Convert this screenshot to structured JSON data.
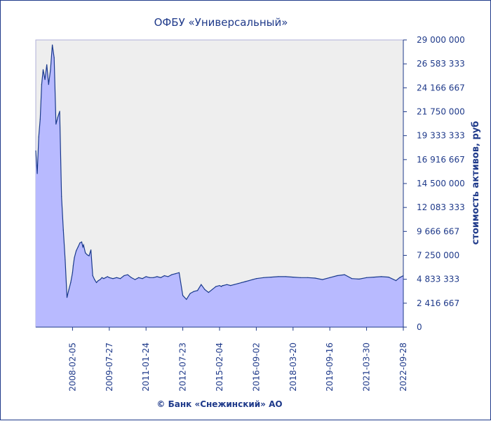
{
  "chart_data": {
    "type": "area",
    "title": "ОФБУ «Универсальный»",
    "ylabel": "стоимость активов, руб",
    "footer": "© Банк «Снежинский» АО",
    "ylim": [
      0,
      29000000
    ],
    "y_ticks": [
      0,
      2416667,
      4833333,
      7250000,
      9666667,
      12083333,
      14500000,
      16916667,
      19333333,
      21750000,
      24166667,
      26583333,
      29000000
    ],
    "y_tick_labels": [
      "0",
      "2 416 667",
      "4 833 333",
      "7 250 000",
      "9 666 667",
      "12 083 333",
      "14 500 000",
      "16 916 667",
      "19 333 333",
      "21 750 000",
      "24 166 667",
      "26 583 333",
      "29 000 000"
    ],
    "x_tick_labels": [
      "2008-02-05",
      "2009-07-27",
      "2011-01-24",
      "2012-07-23",
      "2015-02-04",
      "2016-09-02",
      "2018-03-20",
      "2019-09-16",
      "2021-03-30",
      "2022-09-28"
    ],
    "x_range_index": [
      0,
      1000
    ],
    "x_tick_index": [
      100,
      200,
      300,
      400,
      500,
      600,
      700,
      800,
      900,
      1000
    ],
    "colors": {
      "frame": "#1f3a8a",
      "plot_bg": "#eeeeee",
      "area_fill": "#b8baff",
      "line": "#1a3a8c",
      "text": "#1f3a8a"
    },
    "series": [
      {
        "x": [
          0,
          4,
          8,
          12,
          16,
          20,
          25,
          30,
          35,
          40,
          45,
          50,
          55,
          60,
          65,
          70,
          75,
          80,
          85,
          90,
          95,
          100,
          102,
          105,
          110,
          115,
          120,
          125,
          128,
          130,
          135,
          140,
          145,
          150,
          155,
          160,
          165,
          170,
          175,
          180,
          185,
          190,
          195,
          200,
          210,
          220,
          230,
          240,
          250,
          260,
          270,
          280,
          290,
          300,
          310,
          320,
          330,
          340,
          350,
          360,
          370,
          380,
          390,
          400,
          410,
          420,
          430,
          440,
          450,
          460,
          470,
          480,
          490,
          500,
          505,
          508,
          510,
          520,
          530,
          540,
          550,
          560,
          570,
          580,
          590,
          600,
          620,
          640,
          660,
          680,
          700,
          720,
          740,
          760,
          780,
          800,
          820,
          840,
          860,
          880,
          900,
          920,
          940,
          960,
          980,
          990,
          1000
        ],
        "y": [
          17800000,
          15500000,
          19200000,
          21000000,
          24500000,
          26000000,
          25000000,
          26500000,
          24500000,
          26000000,
          28500000,
          27200000,
          20500000,
          21200000,
          21800000,
          13200000,
          9800000,
          6800000,
          3000000,
          3800000,
          4500000,
          5500000,
          6200000,
          7000000,
          7700000,
          8100000,
          8500000,
          8600000,
          8100000,
          8300000,
          7500000,
          7300000,
          7200000,
          7800000,
          5200000,
          4800000,
          4500000,
          4700000,
          4800000,
          5000000,
          4900000,
          5000000,
          5100000,
          5000000,
          4900000,
          5000000,
          4900000,
          5200000,
          5300000,
          5000000,
          4800000,
          5000000,
          4900000,
          5100000,
          5000000,
          5000000,
          5100000,
          5000000,
          5200000,
          5100000,
          5300000,
          5400000,
          5500000,
          3200000,
          2800000,
          3400000,
          3600000,
          3700000,
          4300000,
          3800000,
          3500000,
          3800000,
          4100000,
          4200000,
          4100000,
          4200000,
          4200000,
          4300000,
          4200000,
          4300000,
          4400000,
          4500000,
          4600000,
          4700000,
          4800000,
          4900000,
          5000000,
          5050000,
          5100000,
          5100000,
          5050000,
          5000000,
          5000000,
          4950000,
          4800000,
          5000000,
          5200000,
          5300000,
          4900000,
          4850000,
          5000000,
          5050000,
          5100000,
          5050000,
          4700000,
          5000000,
          5200000
        ]
      }
    ]
  }
}
